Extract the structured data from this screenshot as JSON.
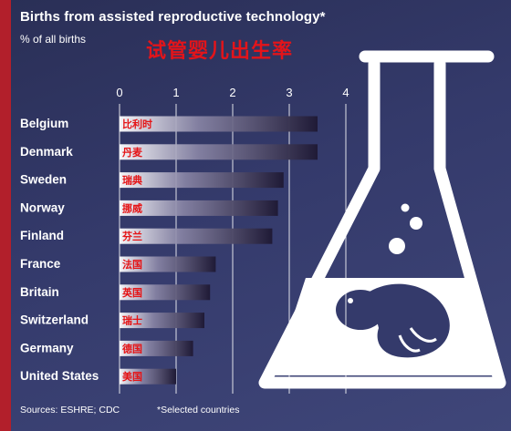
{
  "header": {
    "title": "Births from assisted reproductive technology*",
    "subtitle": "% of all births",
    "title_cn": "试管婴儿出生率"
  },
  "footer": {
    "source": "Sources: ESHRE; CDC",
    "note": "*Selected countries"
  },
  "colors": {
    "background": "#343a6b",
    "bar_start": "#ffffff",
    "bar_end": "#1f1a36",
    "cn_text": "#e3141a",
    "flask_outline": "#ffffff"
  },
  "icons": [
    "flask-icon",
    "fetus-icon"
  ],
  "chart_data": {
    "type": "bar",
    "orientation": "horizontal",
    "title": "Births from assisted reproductive technology*",
    "subtitle": "% of all births",
    "categories": [
      "Belgium",
      "Denmark",
      "Sweden",
      "Norway",
      "Finland",
      "France",
      "Britain",
      "Switzerland",
      "Germany",
      "United States"
    ],
    "categories_cn": [
      "比利时",
      "丹麦",
      "瑞典",
      "挪威",
      "芬兰",
      "法国",
      "英国",
      "瑞士",
      "德国",
      "美国"
    ],
    "values": [
      3.5,
      3.5,
      2.9,
      2.8,
      2.7,
      1.7,
      1.6,
      1.5,
      1.3,
      1.0
    ],
    "xlim": [
      0,
      4
    ],
    "xticks": [
      "0",
      "1",
      "2",
      "3",
      "4"
    ],
    "grid": true
  }
}
